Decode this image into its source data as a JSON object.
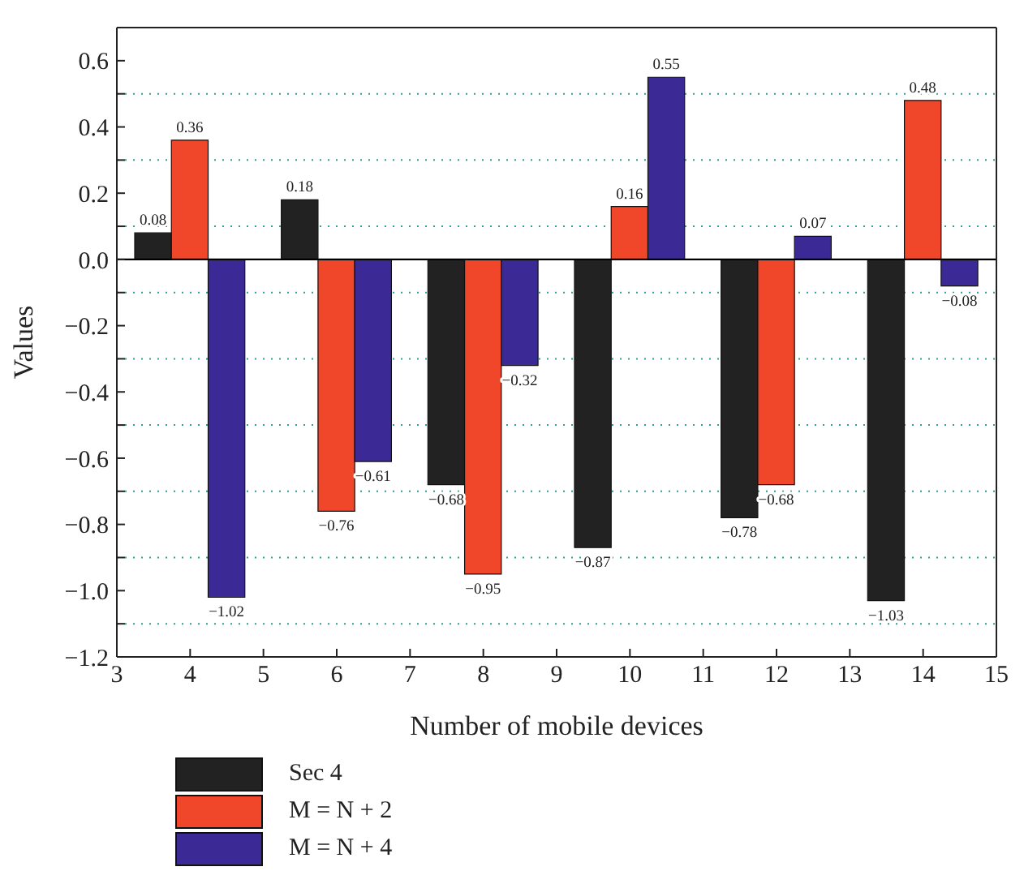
{
  "chart_data": {
    "type": "bar",
    "xlabel": "Number of mobile devices",
    "ylabel": "Values",
    "x": [
      4,
      6,
      8,
      10,
      12,
      14
    ],
    "series": [
      {
        "name": "Sec 4",
        "color": "#222222",
        "values": [
          0.08,
          0.18,
          -0.68,
          -0.87,
          -0.78,
          -1.03
        ],
        "value_labels": [
          "0.08",
          "0.18",
          "−0.68",
          "−0.87",
          "−0.78",
          "−1.03"
        ]
      },
      {
        "name": "M = N + 2",
        "color": "#f0462a",
        "values": [
          0.36,
          -0.76,
          -0.95,
          0.16,
          -0.68,
          0.48
        ],
        "value_labels": [
          "0.36",
          "−0.76",
          "−0.95",
          "0.16",
          "−0.68",
          "0.48"
        ]
      },
      {
        "name": "M = N + 4",
        "color": "#3b2a96",
        "values": [
          -1.02,
          -0.61,
          -0.32,
          0.55,
          0.07,
          -0.08
        ],
        "value_labels": [
          "−1.02",
          "−0.61",
          "−0.32",
          "0.55",
          "0.07",
          "−0.08"
        ]
      }
    ],
    "xlim": [
      3,
      15
    ],
    "xticks": [
      3,
      4,
      5,
      6,
      7,
      8,
      9,
      10,
      11,
      12,
      13,
      14,
      15
    ],
    "ylim": [
      -1.2,
      0.7
    ],
    "yticks": [
      {
        "value": -1.2,
        "label": "−1.2"
      },
      {
        "value": -1.1,
        "label": null
      },
      {
        "value": -1.0,
        "label": "−1.0"
      },
      {
        "value": -0.9,
        "label": null
      },
      {
        "value": -0.8,
        "label": "−0.8"
      },
      {
        "value": -0.7,
        "label": null
      },
      {
        "value": -0.6,
        "label": "−0.6"
      },
      {
        "value": -0.5,
        "label": null
      },
      {
        "value": -0.4,
        "label": "−0.4"
      },
      {
        "value": -0.3,
        "label": null
      },
      {
        "value": -0.2,
        "label": "−0.2"
      },
      {
        "value": -0.1,
        "label": null
      },
      {
        "value": 0.0,
        "label": "0.0"
      },
      {
        "value": 0.1,
        "label": null
      },
      {
        "value": 0.2,
        "label": "0.2"
      },
      {
        "value": 0.3,
        "label": null
      },
      {
        "value": 0.4,
        "label": "0.4"
      },
      {
        "value": 0.5,
        "label": null
      },
      {
        "value": 0.6,
        "label": "0.6"
      }
    ],
    "ref_lines": [
      {
        "axis": "y",
        "value": 0,
        "color": "#000000"
      }
    ],
    "grid": "y",
    "legend": "bottom left"
  }
}
